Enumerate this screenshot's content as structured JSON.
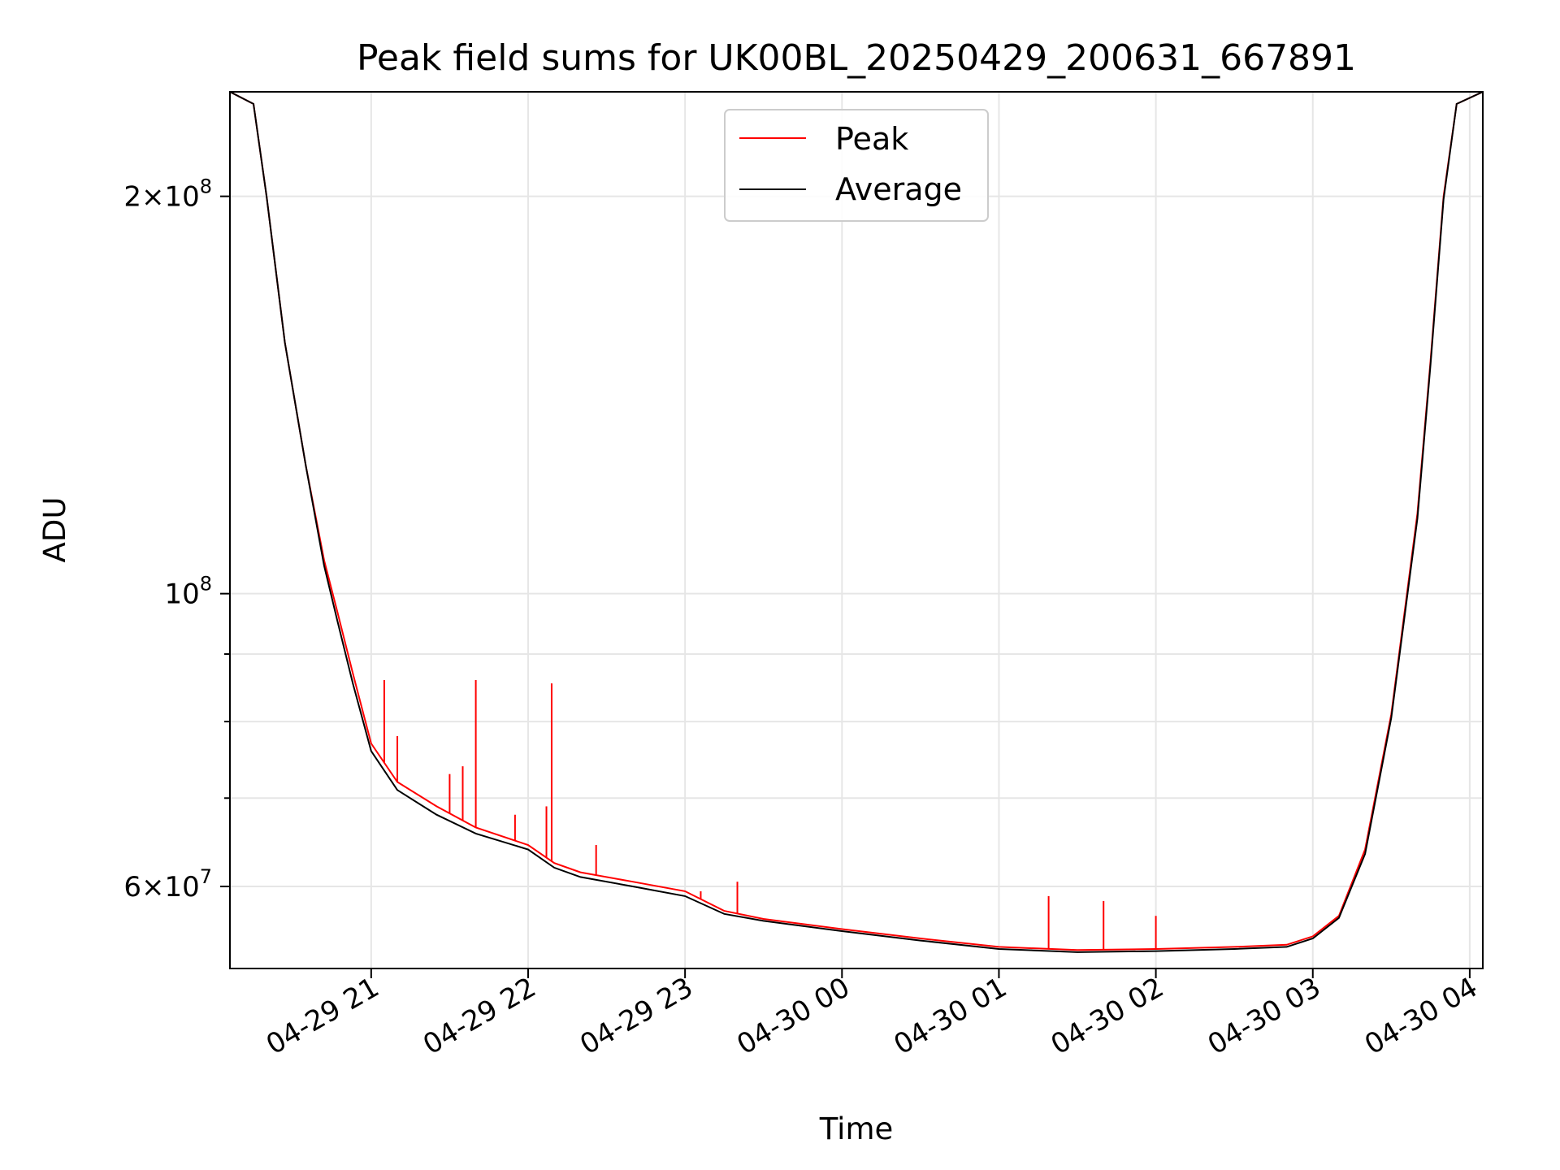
{
  "chart_data": {
    "type": "line",
    "title": "Peak field sums for UK00BL_20250429_200631_667891",
    "xlabel": "Time",
    "ylabel": "ADU",
    "y_scale": "log",
    "ylim": [
      52000000,
      240000000
    ],
    "xlim": [
      "2025-04-29 20:06",
      "2025-04-30 04:05"
    ],
    "grid": true,
    "legend_position": "top-center",
    "x_ticks": [
      {
        "value": "2025-04-29 21:00",
        "label": "04-29 21"
      },
      {
        "value": "2025-04-29 22:00",
        "label": "04-29 22"
      },
      {
        "value": "2025-04-29 23:00",
        "label": "04-29 23"
      },
      {
        "value": "2025-04-30 00:00",
        "label": "04-30 00"
      },
      {
        "value": "2025-04-30 01:00",
        "label": "04-30 01"
      },
      {
        "value": "2025-04-30 02:00",
        "label": "04-30 02"
      },
      {
        "value": "2025-04-30 03:00",
        "label": "04-30 03"
      },
      {
        "value": "2025-04-30 04:00",
        "label": "04-30 04"
      }
    ],
    "y_major_ticks": [
      {
        "value": 200000000,
        "mantissa": "2",
        "exponent": "8"
      },
      {
        "value": 100000000,
        "mantissa": "",
        "exponent": "8"
      },
      {
        "value": 60000000,
        "mantissa": "6",
        "exponent": "7"
      }
    ],
    "y_minor_ticks": [
      70000000,
      80000000,
      90000000
    ],
    "series": [
      {
        "name": "Peak",
        "color": "#ff0000",
        "x": [
          "2025-04-29 20:06",
          "2025-04-29 20:15",
          "2025-04-29 20:20",
          "2025-04-29 20:27",
          "2025-04-29 20:35",
          "2025-04-29 20:42",
          "2025-04-29 20:47",
          "2025-04-29 20:53",
          "2025-04-29 21:00",
          "2025-04-29 21:10",
          "2025-04-29 21:25",
          "2025-04-29 21:40",
          "2025-04-29 22:00",
          "2025-04-29 22:10",
          "2025-04-29 22:20",
          "2025-04-29 22:40",
          "2025-04-29 23:00",
          "2025-04-29 23:15",
          "2025-04-29 23:30",
          "2025-04-30 00:00",
          "2025-04-30 00:30",
          "2025-04-30 01:00",
          "2025-04-30 01:30",
          "2025-04-30 02:00",
          "2025-04-30 02:30",
          "2025-04-30 02:50",
          "2025-04-30 03:00",
          "2025-04-30 03:10",
          "2025-04-30 03:20",
          "2025-04-30 03:30",
          "2025-04-30 03:40",
          "2025-04-30 03:45",
          "2025-04-30 03:50",
          "2025-04-30 03:55",
          "2025-04-30 04:05"
        ],
        "y": [
          240000000,
          235000000,
          200000000,
          155000000,
          125000000,
          106000000,
          97000000,
          87000000,
          77000000,
          72000000,
          69000000,
          66500000,
          64500000,
          62500000,
          61500000,
          60500000,
          59500000,
          57500000,
          56700000,
          55700000,
          54800000,
          54000000,
          53700000,
          53800000,
          54000000,
          54200000,
          55000000,
          57000000,
          64000000,
          81000000,
          115000000,
          150000000,
          200000000,
          235000000,
          240000000
        ]
      },
      {
        "name": "Average",
        "color": "#000000",
        "x": [
          "2025-04-29 20:06",
          "2025-04-29 20:15",
          "2025-04-29 20:20",
          "2025-04-29 20:27",
          "2025-04-29 20:35",
          "2025-04-29 20:42",
          "2025-04-29 20:47",
          "2025-04-29 20:53",
          "2025-04-29 21:00",
          "2025-04-29 21:10",
          "2025-04-29 21:25",
          "2025-04-29 21:40",
          "2025-04-29 22:00",
          "2025-04-29 22:10",
          "2025-04-29 22:20",
          "2025-04-29 22:40",
          "2025-04-29 23:00",
          "2025-04-29 23:15",
          "2025-04-29 23:30",
          "2025-04-30 00:00",
          "2025-04-30 00:30",
          "2025-04-30 01:00",
          "2025-04-30 01:30",
          "2025-04-30 02:00",
          "2025-04-30 02:30",
          "2025-04-30 02:50",
          "2025-04-30 03:00",
          "2025-04-30 03:10",
          "2025-04-30 03:20",
          "2025-04-30 03:30",
          "2025-04-30 03:40",
          "2025-04-30 03:45",
          "2025-04-30 03:50",
          "2025-04-30 03:55",
          "2025-04-30 04:05"
        ],
        "y": [
          240000000,
          235000000,
          200000000,
          155000000,
          125000000,
          105000000,
          95500000,
          85500000,
          76000000,
          71000000,
          68000000,
          65800000,
          64000000,
          62000000,
          61000000,
          60000000,
          59000000,
          57200000,
          56500000,
          55500000,
          54600000,
          53800000,
          53500000,
          53600000,
          53800000,
          54000000,
          54800000,
          56800000,
          63500000,
          80500000,
          114000000,
          149000000,
          199000000,
          235000000,
          240000000
        ]
      }
    ],
    "peak_spikes": [
      {
        "x": "2025-04-29 21:05",
        "y": 86000000
      },
      {
        "x": "2025-04-29 21:10",
        "y": 78000000
      },
      {
        "x": "2025-04-29 21:30",
        "y": 73000000
      },
      {
        "x": "2025-04-29 21:35",
        "y": 74000000
      },
      {
        "x": "2025-04-29 21:40",
        "y": 86000000
      },
      {
        "x": "2025-04-29 21:55",
        "y": 68000000
      },
      {
        "x": "2025-04-29 22:07",
        "y": 69000000
      },
      {
        "x": "2025-04-29 22:09",
        "y": 85500000
      },
      {
        "x": "2025-04-29 22:26",
        "y": 64500000
      },
      {
        "x": "2025-04-29 23:06",
        "y": 59500000
      },
      {
        "x": "2025-04-29 23:20",
        "y": 60500000
      },
      {
        "x": "2025-04-30 01:19",
        "y": 59000000
      },
      {
        "x": "2025-04-30 01:40",
        "y": 58500000
      },
      {
        "x": "2025-04-30 02:00",
        "y": 57000000
      }
    ]
  }
}
